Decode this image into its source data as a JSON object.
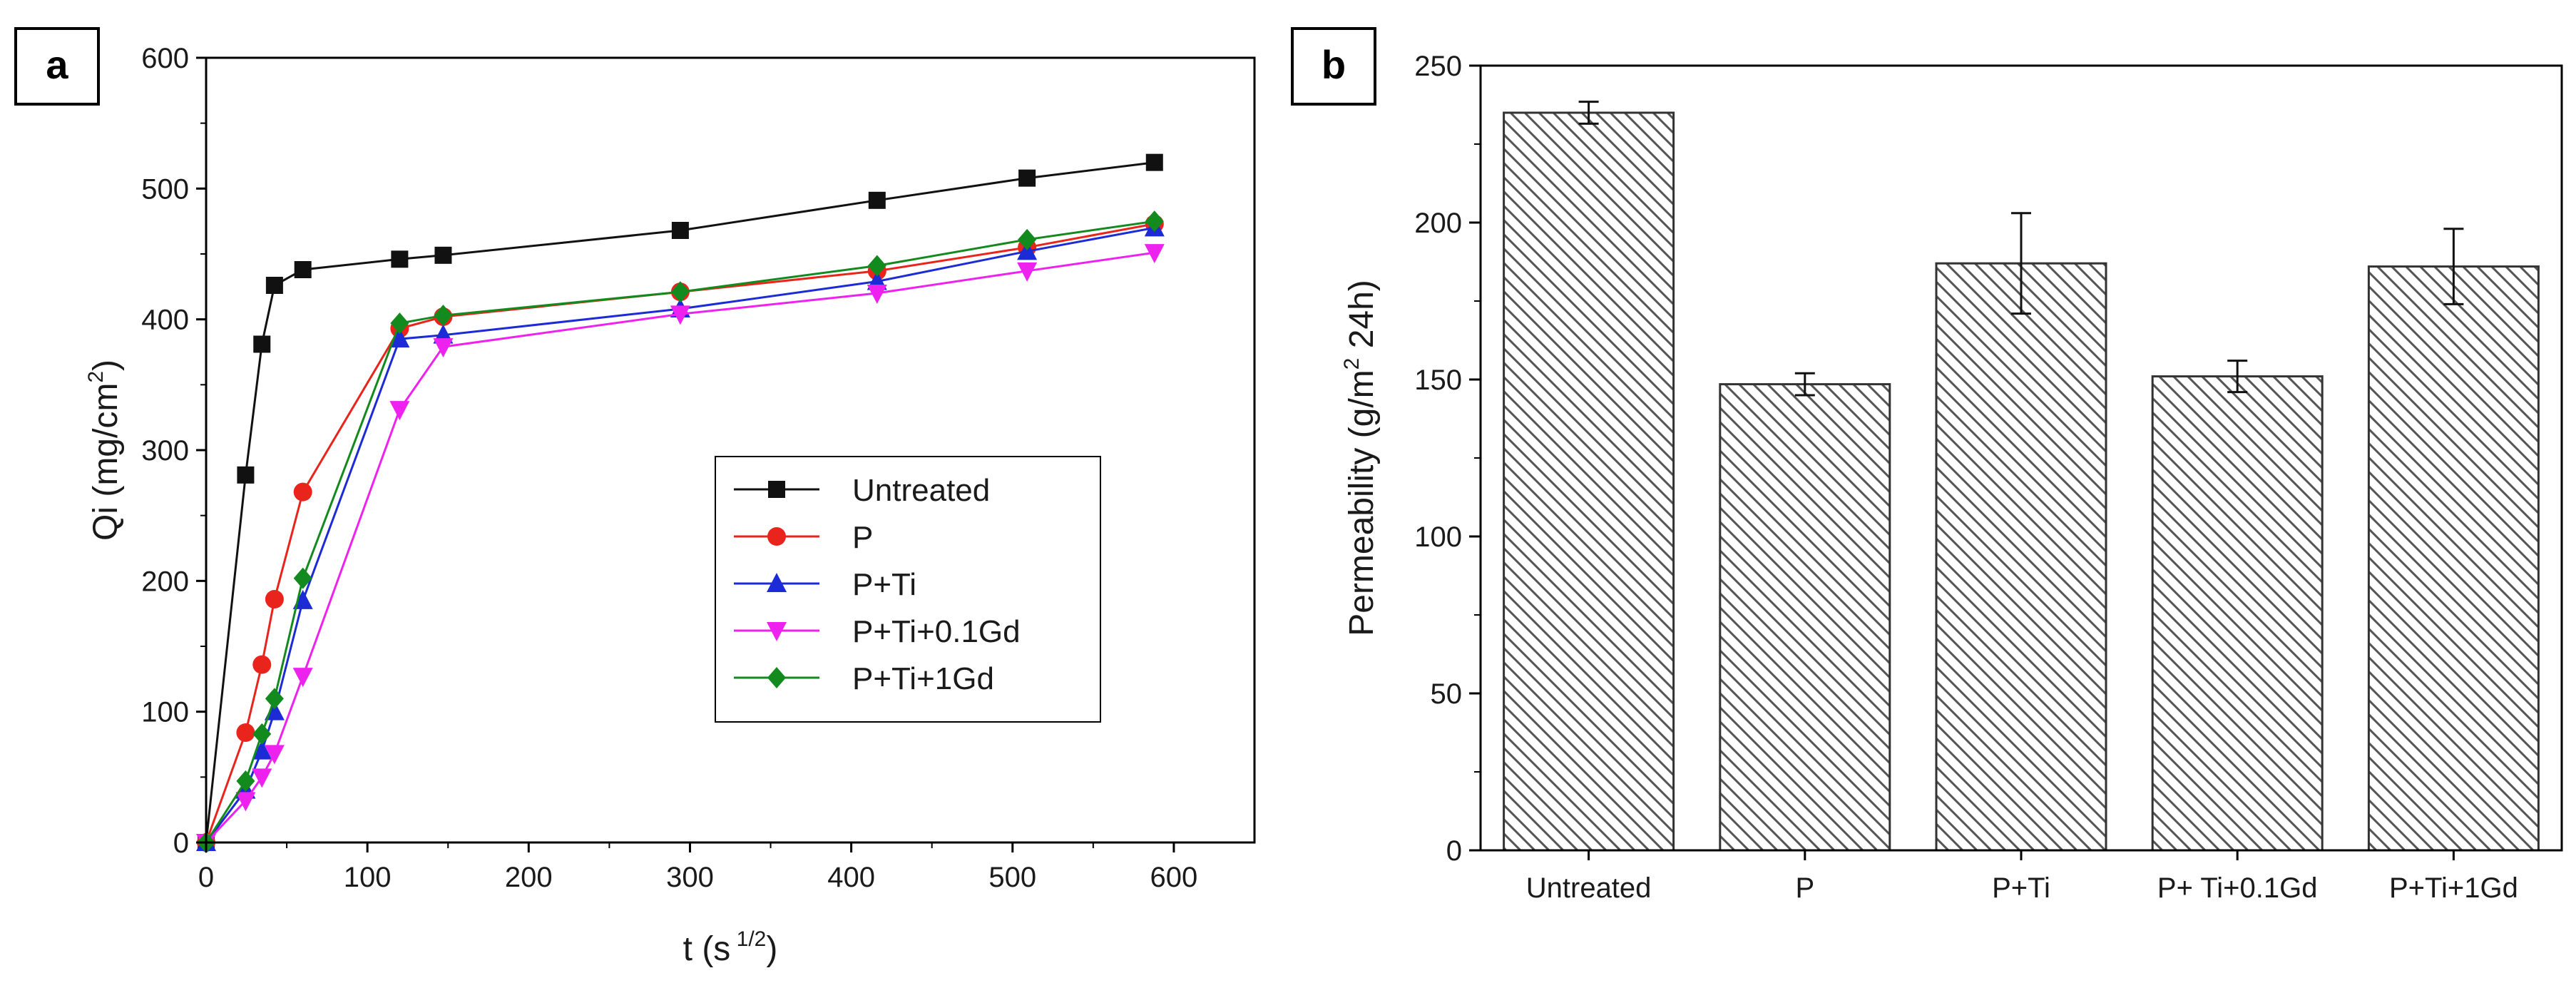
{
  "chart_data": [
    {
      "panel_label": "a",
      "type": "line",
      "xlabel_main": "t (s",
      "xlabel_sup": "1/2",
      "xlabel_close": ")",
      "ylabel_main": "Qi (mg/cm",
      "ylabel_sup": "2",
      "ylabel_close": ")",
      "xlim": [
        0,
        650
      ],
      "ylim": [
        0,
        600
      ],
      "xticks": [
        0,
        100,
        200,
        300,
        400,
        500,
        600
      ],
      "yticks": [
        0,
        100,
        200,
        300,
        400,
        500,
        600
      ],
      "legend_position": "center-right",
      "series": [
        {
          "name": "Untreated",
          "color": "#111111",
          "marker": "square",
          "x": [
            0,
            24.5,
            34.6,
            42.4,
            60,
            120,
            147,
            294,
            416,
            509,
            588
          ],
          "y": [
            0,
            281,
            381,
            426,
            438,
            446,
            449,
            468,
            491,
            508,
            520
          ]
        },
        {
          "name": "P",
          "color": "#e8241c",
          "marker": "circle",
          "x": [
            0,
            24.5,
            34.6,
            42.4,
            60,
            120,
            147,
            294,
            416,
            509,
            588
          ],
          "y": [
            0,
            84,
            136,
            186,
            268,
            393,
            402,
            421,
            437,
            455,
            473
          ]
        },
        {
          "name": "P+Ti",
          "color": "#1c2bd6",
          "marker": "triangle-up",
          "x": [
            0,
            24.5,
            34.6,
            42.4,
            60,
            120,
            147,
            294,
            416,
            509,
            588
          ],
          "y": [
            0,
            40,
            70,
            100,
            185,
            385,
            388,
            408,
            429,
            452,
            470
          ]
        },
        {
          "name": "P+Ti+0.1Gd",
          "color": "#ee22ee",
          "marker": "triangle-down",
          "x": [
            0,
            24.5,
            34.6,
            42.4,
            60,
            120,
            147,
            294,
            416,
            509,
            588
          ],
          "y": [
            0,
            32,
            50,
            68,
            127,
            331,
            379,
            404,
            420,
            437,
            451
          ]
        },
        {
          "name": "P+Ti+1Gd",
          "color": "#138a1e",
          "marker": "diamond",
          "x": [
            0,
            24.5,
            34.6,
            42.4,
            60,
            120,
            147,
            294,
            416,
            509,
            588
          ],
          "y": [
            0,
            47,
            83,
            110,
            202,
            397,
            403,
            421,
            441,
            461,
            475
          ]
        }
      ]
    },
    {
      "panel_label": "b",
      "type": "bar",
      "ylabel_pre": "Permeability (g/m",
      "ylabel_sup": "2",
      "ylabel_post": " 24h)",
      "ylim": [
        0,
        250
      ],
      "yticks": [
        0,
        50,
        100,
        150,
        200,
        250
      ],
      "categories": [
        "Untreated",
        "P",
        "P+Ti",
        "P+ Ti+0.1Gd",
        "P+Ti+1Gd"
      ],
      "values": [
        235,
        148.5,
        187,
        151,
        186
      ],
      "errors": [
        3.5,
        3.5,
        16,
        5,
        12
      ],
      "bar_fill": "hatched",
      "bar_color": "#555555"
    }
  ]
}
